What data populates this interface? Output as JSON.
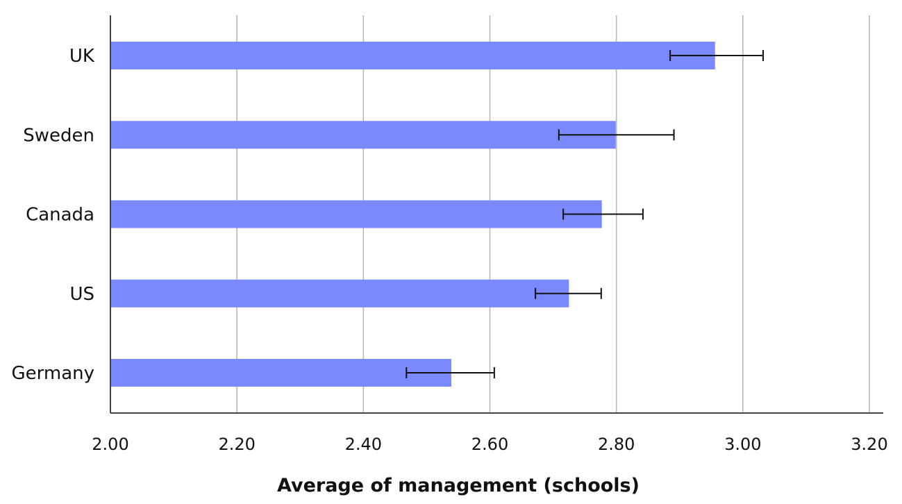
{
  "chart_data": {
    "type": "bar",
    "orientation": "horizontal",
    "categories": [
      "UK",
      "Sweden",
      "Canada",
      "US",
      "Germany"
    ],
    "values": [
      2.956,
      2.799,
      2.777,
      2.725,
      2.539
    ],
    "error_low": [
      2.885,
      2.709,
      2.716,
      2.672,
      2.468
    ],
    "error_high": [
      3.032,
      2.891,
      2.842,
      2.776,
      2.607
    ],
    "xlabel": "Average of management (schools)",
    "ylabel": "",
    "title": "",
    "xlim": [
      2.0,
      3.2
    ],
    "x_ticks": [
      "2.00",
      "2.20",
      "2.40",
      "2.60",
      "2.80",
      "3.00",
      "3.20"
    ],
    "grid": "vertical",
    "legend": "none",
    "colors": {
      "bar": "#7b89ff",
      "grid": "#b3b3b3",
      "axis": "#444444",
      "error_bar": "#111111"
    }
  }
}
